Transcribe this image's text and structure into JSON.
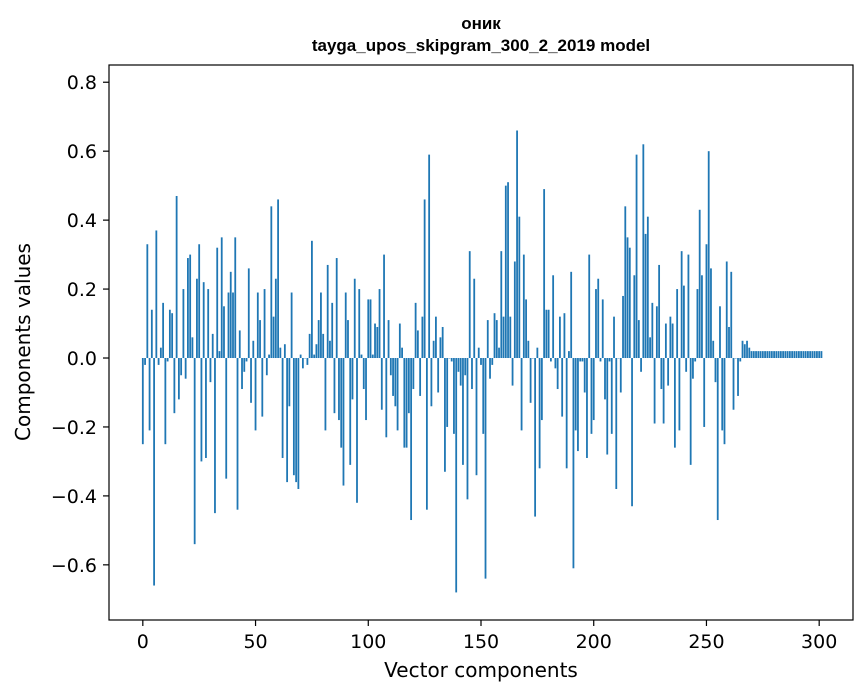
{
  "chart_data": {
    "type": "bar",
    "title": "оник",
    "subtitle": "tayga_upos_skipgram_300_2_2019 model",
    "xlabel": "Vector components",
    "ylabel": "Components values",
    "xlim": [
      -15,
      315
    ],
    "ylim": [
      -0.76,
      0.85
    ],
    "xticks": [
      0,
      50,
      100,
      150,
      200,
      250,
      300
    ],
    "xtick_labels": [
      "0",
      "50",
      "100",
      "150",
      "200",
      "250",
      "300"
    ],
    "yticks": [
      -0.6,
      -0.4,
      -0.2,
      0.0,
      0.2,
      0.4,
      0.6,
      0.8
    ],
    "ytick_labels": [
      "−0.6",
      "−0.4",
      "−0.2",
      "0.0",
      "0.2",
      "0.4",
      "0.6",
      "0.8"
    ],
    "grid": false,
    "bar_color": "#1f77b4",
    "values": [
      -0.25,
      -0.02,
      0.33,
      -0.21,
      0.14,
      -0.66,
      0.37,
      -0.02,
      0.03,
      0.16,
      -0.25,
      -0.01,
      0.14,
      0.13,
      -0.16,
      0.47,
      -0.12,
      -0.05,
      0.2,
      -0.06,
      0.29,
      0.3,
      0.06,
      -0.54,
      0.23,
      0.33,
      -0.3,
      0.22,
      -0.29,
      0.2,
      -0.07,
      0.07,
      -0.45,
      0.32,
      0.02,
      0.35,
      0.15,
      -0.35,
      0.19,
      0.25,
      0.19,
      0.35,
      -0.44,
      0.08,
      -0.09,
      -0.04,
      -0.01,
      0.26,
      -0.13,
      0.05,
      -0.21,
      0.19,
      0.11,
      -0.17,
      0.2,
      -0.05,
      0.01,
      0.44,
      0.12,
      0.23,
      0.46,
      0.03,
      -0.29,
      0.04,
      -0.36,
      -0.14,
      0.19,
      -0.34,
      -0.36,
      -0.38,
      0.01,
      -0.03,
      0.0,
      -0.02,
      0.07,
      0.34,
      0.01,
      0.04,
      0.11,
      0.19,
      0.07,
      -0.21,
      0.27,
      0.05,
      0.16,
      -0.16,
      0.29,
      -0.18,
      -0.26,
      -0.37,
      0.19,
      0.11,
      -0.31,
      -0.12,
      0.23,
      -0.42,
      0.2,
      0.01,
      -0.09,
      -0.18,
      0.17,
      0.17,
      0.01,
      0.1,
      0.09,
      0.2,
      -0.15,
      0.3,
      -0.23,
      0.11,
      -0.05,
      -0.11,
      -0.14,
      -0.21,
      0.1,
      0.03,
      -0.26,
      -0.26,
      -0.16,
      -0.47,
      -0.09,
      0.16,
      0.08,
      -0.11,
      0.12,
      0.46,
      -0.44,
      0.59,
      -0.14,
      0.05,
      0.12,
      -0.1,
      0.06,
      0.09,
      -0.33,
      -0.2,
      0.0,
      -0.01,
      -0.22,
      -0.68,
      -0.04,
      -0.08,
      -0.31,
      -0.05,
      -0.41,
      0.31,
      -0.09,
      0.23,
      -0.34,
      0.03,
      -0.02,
      -0.22,
      -0.64,
      0.11,
      -0.06,
      -0.02,
      0.13,
      0.11,
      0.03,
      0.31,
      0.12,
      0.5,
      0.51,
      0.12,
      -0.08,
      0.28,
      0.66,
      0.41,
      -0.21,
      0.3,
      0.17,
      0.05,
      -0.13,
      0.0,
      -0.46,
      0.03,
      -0.32,
      -0.18,
      0.49,
      0.14,
      0.14,
      -0.01,
      0.24,
      -0.03,
      -0.09,
      0.12,
      -0.17,
      0.13,
      -0.32,
      0.02,
      0.25,
      -0.61,
      -0.21,
      -0.27,
      -0.01,
      -0.01,
      -0.1,
      -0.29,
      0.3,
      -0.22,
      -0.18,
      0.2,
      0.23,
      -0.01,
      0.17,
      -0.12,
      -0.28,
      -0.01,
      -0.22,
      0.12,
      -0.38,
      0.0,
      -0.1,
      0.18,
      0.44,
      0.35,
      0.32,
      -0.43,
      0.24,
      0.59,
      0.11,
      -0.04,
      0.62,
      0.36,
      0.41,
      0.06,
      0.16,
      -0.19,
      0.15,
      0.27,
      -0.09,
      -0.19,
      0.1,
      -0.08,
      0.12,
      0.1,
      -0.26,
      0.2,
      -0.21,
      0.31,
      0.21,
      -0.04,
      0.3,
      -0.31,
      -0.06,
      -0.01,
      0.2,
      0.43,
      0.24,
      -0.2,
      0.33,
      0.6,
      0.26,
      0.05,
      -0.07,
      -0.47,
      0.15,
      -0.21,
      -0.25,
      0.28,
      0.09,
      0.25,
      -0.15,
      0.0,
      -0.11,
      -0.01,
      0.05,
      0.04,
      0.05,
      0.03,
      0.02,
      0.02,
      0.02,
      0.02,
      0.02,
      0.02,
      0.02,
      0.02,
      0.02,
      0.02,
      0.02,
      0.02,
      0.02,
      0.02,
      0.02,
      0.02,
      0.02,
      0.02,
      0.02,
      0.02,
      0.02,
      0.02,
      0.02,
      0.02,
      0.02,
      0.02,
      0.02,
      0.02,
      0.02,
      0.02,
      0.02,
      0.02
    ]
  }
}
